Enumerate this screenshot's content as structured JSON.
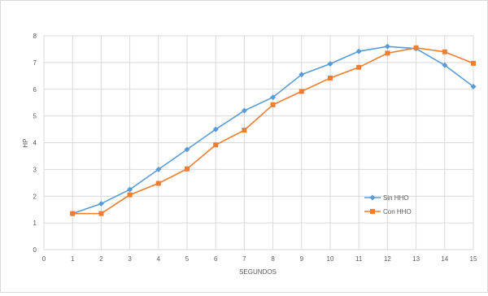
{
  "chart_data": {
    "type": "line",
    "title": "",
    "xlabel": "SEGUNDOS",
    "ylabel": "HP",
    "xlim": [
      0,
      15
    ],
    "ylim": [
      0,
      8
    ],
    "x_ticks": [
      0,
      1,
      2,
      3,
      4,
      5,
      6,
      7,
      8,
      9,
      10,
      11,
      12,
      13,
      14,
      15
    ],
    "y_ticks": [
      0,
      1,
      2,
      3,
      4,
      5,
      6,
      7,
      8
    ],
    "grid": "vertical and horizontal",
    "legend_position": "right",
    "x": [
      1,
      2,
      3,
      4,
      5,
      6,
      7,
      8,
      9,
      10,
      11,
      12,
      13,
      14,
      15
    ],
    "series": [
      {
        "name": "Sin HHO",
        "color": "#5b9bd5",
        "marker": "diamond",
        "values": [
          1.35,
          1.72,
          2.25,
          3.0,
          3.75,
          4.5,
          5.2,
          5.7,
          6.55,
          6.95,
          7.42,
          7.6,
          7.52,
          6.9,
          6.1
        ]
      },
      {
        "name": "Con HHO",
        "color": "#ed7d31",
        "marker": "square",
        "values": [
          1.35,
          1.35,
          2.05,
          2.48,
          3.02,
          3.92,
          4.47,
          5.42,
          5.92,
          6.42,
          6.82,
          7.35,
          7.55,
          7.4,
          6.97
        ]
      }
    ]
  }
}
